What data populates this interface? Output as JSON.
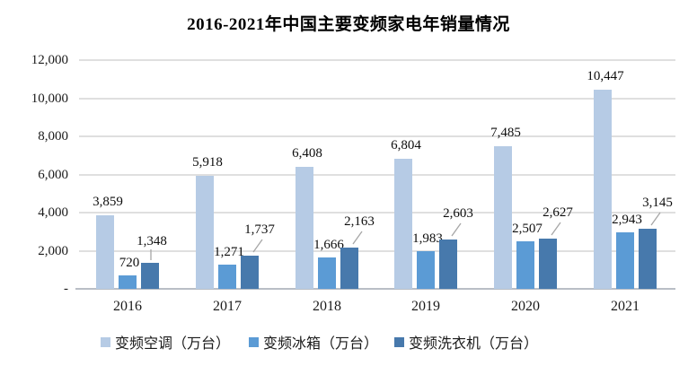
{
  "chart_data": {
    "type": "bar",
    "title": "2016-2021年中国主要变频家电年销量情况",
    "categories": [
      "2016",
      "2017",
      "2018",
      "2019",
      "2020",
      "2021"
    ],
    "series": [
      {
        "id": "air-conditioner",
        "name": "变频空调（万台）",
        "color": "#B6CBE5",
        "values": [
          3859,
          5918,
          6408,
          6804,
          7485,
          10447
        ],
        "labels": [
          "3,859",
          "5,918",
          "6,408",
          "6,804",
          "7,485",
          "10,447"
        ]
      },
      {
        "id": "fridge",
        "name": "变频冰箱（万台）",
        "color": "#5B9BD5",
        "values": [
          720,
          1271,
          1666,
          1983,
          2507,
          2943
        ],
        "labels": [
          "720",
          "1,271",
          "1,666",
          "1,983",
          "2,507",
          "2,943"
        ]
      },
      {
        "id": "washing-machine",
        "name": "变频洗衣机（万台）",
        "color": "#4779AC",
        "values": [
          1348,
          1737,
          2163,
          2603,
          2627,
          3145
        ],
        "labels": [
          "1,348",
          "1,737",
          "2,163",
          "2,603",
          "2,627",
          "3,145"
        ]
      }
    ],
    "ylim": [
      0,
      12000
    ],
    "y_ticks": [
      {
        "value": 12000,
        "label": "12,000"
      },
      {
        "value": 10000,
        "label": "10,000"
      },
      {
        "value": 8000,
        "label": "8,000"
      },
      {
        "value": 6000,
        "label": "6,000"
      },
      {
        "value": 4000,
        "label": "4,000"
      },
      {
        "value": 2000,
        "label": "2,000"
      },
      {
        "value": 0,
        "label": "-"
      }
    ],
    "grid": true,
    "legend_position": "bottom",
    "colors": {
      "gridline": "#DFDFDF",
      "axis": "#B9BEC6",
      "leader_line": "#A6A6A6",
      "text": "#111111"
    }
  }
}
